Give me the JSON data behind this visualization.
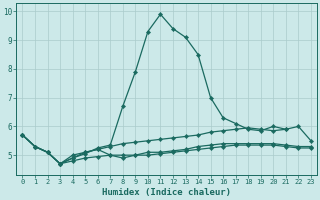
{
  "xlabel": "Humidex (Indice chaleur)",
  "x_values": [
    0,
    1,
    2,
    3,
    4,
    5,
    6,
    7,
    8,
    9,
    10,
    11,
    12,
    13,
    14,
    15,
    16,
    17,
    18,
    19,
    20,
    21,
    22,
    23
  ],
  "lines": [
    {
      "y": [
        5.7,
        5.3,
        5.1,
        4.7,
        5.0,
        5.1,
        5.2,
        5.0,
        5.0,
        5.0,
        5.1,
        5.1,
        5.15,
        5.2,
        5.3,
        5.35,
        5.4,
        5.4,
        5.4,
        5.4,
        5.4,
        5.35,
        5.3,
        5.3
      ]
    },
    {
      "y": [
        5.7,
        5.3,
        5.1,
        4.7,
        4.9,
        5.1,
        5.2,
        5.3,
        5.4,
        5.45,
        5.5,
        5.55,
        5.6,
        5.65,
        5.7,
        5.8,
        5.85,
        5.9,
        5.95,
        5.9,
        5.85,
        5.9,
        6.0,
        5.5
      ]
    },
    {
      "y": [
        5.7,
        5.3,
        5.1,
        4.7,
        4.9,
        5.05,
        5.25,
        5.35,
        6.7,
        7.9,
        9.3,
        9.9,
        9.4,
        9.1,
        8.5,
        7.0,
        6.3,
        6.1,
        5.9,
        5.85,
        6.0,
        5.9,
        null,
        null
      ]
    },
    {
      "y": [
        5.7,
        5.3,
        5.1,
        4.7,
        4.8,
        4.9,
        4.95,
        5.0,
        4.9,
        5.0,
        5.0,
        5.05,
        5.1,
        5.15,
        5.2,
        5.25,
        5.3,
        5.35,
        5.35,
        5.35,
        5.35,
        5.3,
        5.25,
        5.25
      ]
    }
  ],
  "ylim": [
    4.3,
    10.3
  ],
  "xlim": [
    -0.5,
    23.5
  ],
  "yticks": [
    5,
    6,
    7,
    8,
    9,
    10
  ],
  "xticks": [
    0,
    1,
    2,
    3,
    4,
    5,
    6,
    7,
    8,
    9,
    10,
    11,
    12,
    13,
    14,
    15,
    16,
    17,
    18,
    19,
    20,
    21,
    22,
    23
  ],
  "bg_color": "#cce9e9",
  "grid_color": "#aacccc",
  "line_color": "#1a6a60",
  "markersize": 2.2,
  "linewidth": 0.9
}
